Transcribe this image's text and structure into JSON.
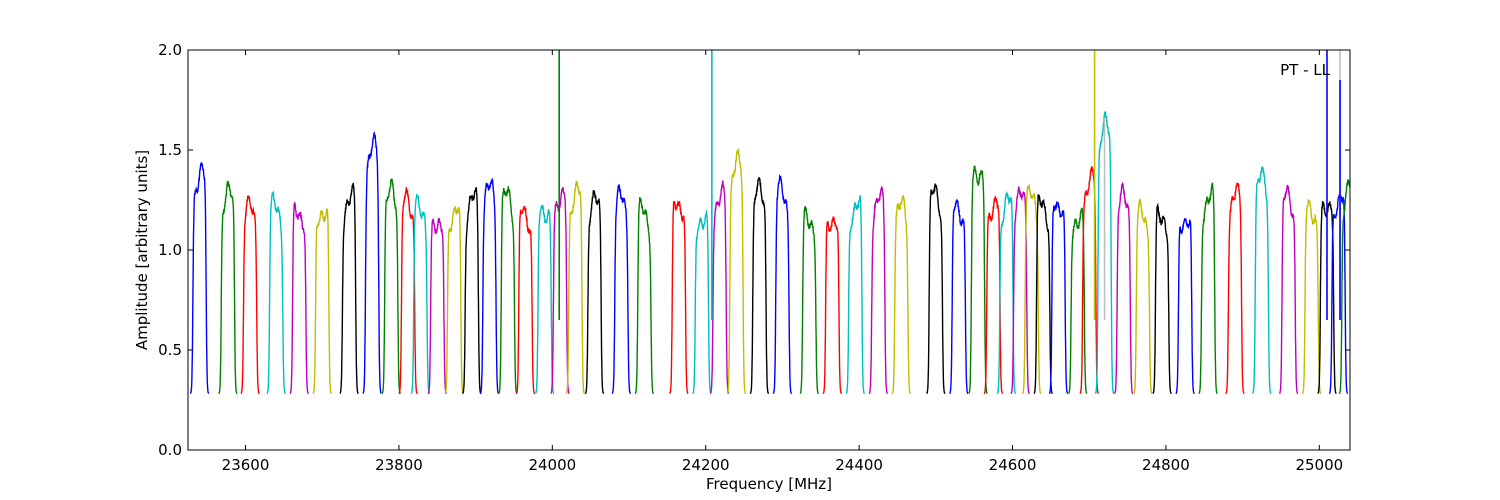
{
  "chart_data": {
    "type": "line",
    "title": "",
    "annotation": "PT - LL",
    "xlabel": "Frequency [MHz]",
    "ylabel": "Amplitude [arbitrary units]",
    "xlim": [
      23525,
      25040
    ],
    "ylim": [
      0.0,
      2.0
    ],
    "xticks": [
      23600,
      23800,
      24000,
      24200,
      24400,
      24600,
      24800,
      25000
    ],
    "yticks": [
      0.0,
      0.5,
      1.0,
      1.5,
      2.0
    ],
    "ytick_labels": [
      "0.0",
      "0.5",
      "1.0",
      "1.5",
      "2.0"
    ],
    "grid": false,
    "legend": "none",
    "palette": [
      "#0000ff",
      "#008000",
      "#ff0000",
      "#00bfbf",
      "#bf00bf",
      "#bfbf00",
      "#000000"
    ],
    "color_cycle_order": "blue, green, red, cyan, magenta, yellow, black",
    "series_description": "Sequence of adjacent channel passbands (about 20 MHz wide each), each falling to ~0.27-0.35 at the band edges and peaking near 1.2-1.3 in the middle.",
    "channel_centers_mhz": [
      23540,
      23577,
      23606,
      23640,
      23670,
      23700,
      23735,
      23765,
      23790,
      23812,
      23828,
      23850,
      23872,
      23895,
      23918,
      23942,
      23965,
      23990,
      24010,
      24030,
      24055,
      24090,
      24120,
      24165,
      24195,
      24218,
      24240,
      24270,
      24300,
      24335,
      24365,
      24395,
      24425,
      24455,
      24500,
      24530,
      24555,
      24575,
      24592,
      24610,
      24625,
      24640,
      24660,
      24685,
      24700,
      24720,
      24745,
      24770,
      24795,
      24825,
      24855,
      24890,
      24925,
      24960,
      24990,
      25010,
      25025,
      25038
    ],
    "channel_peaks": [
      1.4,
      1.27,
      1.2,
      1.24,
      1.25,
      1.26,
      1.3,
      1.5,
      1.27,
      1.25,
      1.27,
      1.21,
      1.24,
      1.26,
      1.29,
      1.27,
      1.22,
      1.27,
      1.33,
      1.3,
      1.23,
      1.25,
      1.22,
      1.3,
      1.22,
      1.3,
      1.42,
      1.28,
      1.31,
      1.21,
      1.22,
      1.26,
      1.25,
      1.2,
      1.28,
      1.25,
      1.48,
      1.28,
      1.25,
      1.25,
      1.26,
      1.26,
      1.3,
      1.22,
      1.37,
      1.6,
      1.25,
      1.2,
      1.23,
      1.22,
      1.3,
      1.27,
      1.34,
      1.27,
      1.25,
      1.3,
      1.3,
      1.32
    ],
    "spikes": [
      {
        "x": 24009,
        "y": 2.0,
        "color": "#008000"
      },
      {
        "x": 24208,
        "y": 2.0,
        "color": "#00bfbf"
      },
      {
        "x": 24707,
        "y": 2.0,
        "color": "#bfbf00"
      },
      {
        "x": 24720,
        "y": 1.66,
        "color": "#bfbfbf"
      },
      {
        "x": 25010,
        "y": 2.0,
        "color": "#0000ff"
      },
      {
        "x": 25027,
        "y": 2.0,
        "color": "#bfbfbf"
      },
      {
        "x": 25027,
        "y": 1.85,
        "color": "#0000ff"
      }
    ]
  }
}
